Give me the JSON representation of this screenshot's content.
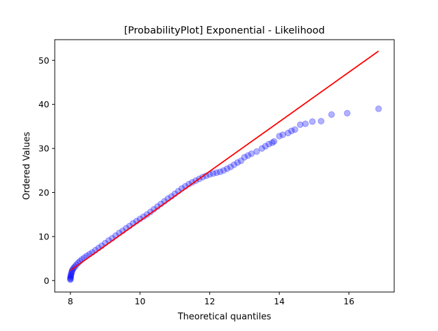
{
  "chart_data": {
    "type": "scatter",
    "title": "[ProbabilityPlot] Exponential - Likelihood",
    "xlabel": "Theoretical quantiles",
    "ylabel": "Ordered Values",
    "xlim": [
      7.55,
      17.3
    ],
    "ylim": [
      -2.6,
      54.7
    ],
    "xticks": [
      8,
      10,
      12,
      14,
      16
    ],
    "yticks": [
      0,
      10,
      20,
      30,
      40,
      50
    ],
    "grid": false,
    "legend": "none",
    "series": [
      {
        "role": "ordered-values",
        "color": "#0000ff",
        "alpha": 0.3,
        "points": [
          [
            8.0,
            0.2
          ],
          [
            8.0,
            0.4
          ],
          [
            8.0,
            0.6
          ],
          [
            8.01,
            0.9
          ],
          [
            8.01,
            1.1
          ],
          [
            8.02,
            1.4
          ],
          [
            8.03,
            1.7
          ],
          [
            8.04,
            2.0
          ],
          [
            8.05,
            2.3
          ],
          [
            8.07,
            2.6
          ],
          [
            8.1,
            2.9
          ],
          [
            8.13,
            3.2
          ],
          [
            8.17,
            3.6
          ],
          [
            8.22,
            4.0
          ],
          [
            8.27,
            4.4
          ],
          [
            8.33,
            4.8
          ],
          [
            8.4,
            5.2
          ],
          [
            8.47,
            5.6
          ],
          [
            8.55,
            6.0
          ],
          [
            8.63,
            6.4
          ],
          [
            8.72,
            6.9
          ],
          [
            8.81,
            7.4
          ],
          [
            8.9,
            7.9
          ],
          [
            9.0,
            8.5
          ],
          [
            9.1,
            9.1
          ],
          [
            9.2,
            9.6
          ],
          [
            9.3,
            10.2
          ],
          [
            9.4,
            10.8
          ],
          [
            9.5,
            11.3
          ],
          [
            9.6,
            11.9
          ],
          [
            9.7,
            12.4
          ],
          [
            9.8,
            13.0
          ],
          [
            9.9,
            13.5
          ],
          [
            10.0,
            14.0
          ],
          [
            10.1,
            14.5
          ],
          [
            10.2,
            15.0
          ],
          [
            10.3,
            15.6
          ],
          [
            10.4,
            16.2
          ],
          [
            10.5,
            16.8
          ],
          [
            10.6,
            17.4
          ],
          [
            10.7,
            18.0
          ],
          [
            10.8,
            18.6
          ],
          [
            10.9,
            19.1
          ],
          [
            11.0,
            19.7
          ],
          [
            11.1,
            20.3
          ],
          [
            11.2,
            20.9
          ],
          [
            11.3,
            21.4
          ],
          [
            11.4,
            21.9
          ],
          [
            11.5,
            22.3
          ],
          [
            11.6,
            22.7
          ],
          [
            11.7,
            23.1
          ],
          [
            11.8,
            23.5
          ],
          [
            11.9,
            23.8
          ],
          [
            12.0,
            24.1
          ],
          [
            12.1,
            24.3
          ],
          [
            12.2,
            24.5
          ],
          [
            12.3,
            24.7
          ],
          [
            12.4,
            25.0
          ],
          [
            12.5,
            25.4
          ],
          [
            12.6,
            25.8
          ],
          [
            12.7,
            26.3
          ],
          [
            12.8,
            26.8
          ],
          [
            12.9,
            27.2
          ],
          [
            13.0,
            28.0
          ],
          [
            13.1,
            28.4
          ],
          [
            13.2,
            28.8
          ],
          [
            13.35,
            29.3
          ],
          [
            13.5,
            30.0
          ],
          [
            13.6,
            30.5
          ],
          [
            13.7,
            31.0
          ],
          [
            13.8,
            31.3
          ],
          [
            13.85,
            31.6
          ],
          [
            14.0,
            32.8
          ],
          [
            14.1,
            33.1
          ],
          [
            14.25,
            33.5
          ],
          [
            14.35,
            34.0
          ],
          [
            14.45,
            34.3
          ],
          [
            14.6,
            35.4
          ],
          [
            14.75,
            35.6
          ],
          [
            14.95,
            36.1
          ],
          [
            15.2,
            36.2
          ],
          [
            15.5,
            37.7
          ],
          [
            15.95,
            38.0
          ],
          [
            16.85,
            39.0
          ]
        ]
      },
      {
        "role": "fit-line",
        "color": "#ff0000",
        "points": [
          [
            8.0,
            2.3
          ],
          [
            16.85,
            52.1
          ]
        ]
      }
    ]
  }
}
